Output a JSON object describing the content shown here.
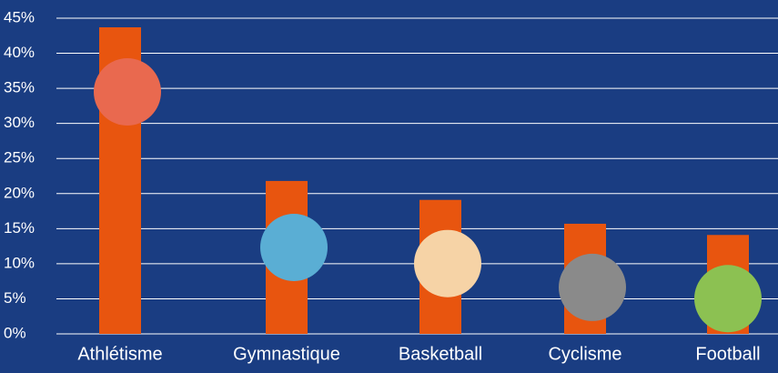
{
  "chart_data": {
    "type": "bar",
    "categories": [
      "Athlétisme",
      "Gymnastique",
      "Basketball",
      "Cyclisme",
      "Football"
    ],
    "values": [
      43.7,
      21.8,
      19.1,
      15.7,
      14.1
    ],
    "color": "#e8550f",
    "ylim": [
      0,
      45
    ],
    "yticks": [
      {
        "value": 0,
        "label": "0%"
      },
      {
        "value": 5,
        "label": "5%"
      },
      {
        "value": 10,
        "label": "10%"
      },
      {
        "value": 15,
        "label": "15%"
      },
      {
        "value": 20,
        "label": "20%"
      },
      {
        "value": 25,
        "label": "25%"
      },
      {
        "value": 30,
        "label": "30%"
      },
      {
        "value": 35,
        "label": "35%"
      },
      {
        "value": 40,
        "label": "40%"
      },
      {
        "value": 45,
        "label": "45%"
      }
    ],
    "grid": true
  }
}
